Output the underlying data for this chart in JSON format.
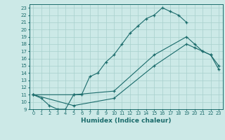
{
  "xlabel": "Humidex (Indice chaleur)",
  "ylabel": "",
  "xlim": [
    -0.5,
    23.5
  ],
  "ylim": [
    9,
    23.5
  ],
  "xticks": [
    0,
    1,
    2,
    3,
    4,
    5,
    6,
    7,
    8,
    9,
    10,
    11,
    12,
    13,
    14,
    15,
    16,
    17,
    18,
    19,
    20,
    21,
    22,
    23
  ],
  "yticks": [
    9,
    10,
    11,
    12,
    13,
    14,
    15,
    16,
    17,
    18,
    19,
    20,
    21,
    22,
    23
  ],
  "background_color": "#cce9e7",
  "grid_color": "#a8d0cd",
  "line_color": "#1a6b6b",
  "curve1_x": [
    0,
    1,
    2,
    3,
    4,
    5,
    6,
    7,
    8,
    9,
    10,
    11,
    12,
    13,
    14,
    15,
    16,
    17,
    18,
    19
  ],
  "curve1_y": [
    11,
    10.5,
    9.5,
    9,
    9,
    11,
    11,
    13.5,
    14,
    15.5,
    16.5,
    18,
    19.5,
    20.5,
    21.5,
    22,
    23,
    22.5,
    22,
    21
  ],
  "curve2_x": [
    0,
    5,
    10,
    15,
    19,
    20,
    21,
    22,
    23
  ],
  "curve2_y": [
    11,
    11,
    11.5,
    16.5,
    19,
    18,
    17,
    16.5,
    15
  ],
  "curve3_x": [
    0,
    5,
    10,
    15,
    19,
    20,
    21,
    22,
    23
  ],
  "curve3_y": [
    11,
    9.5,
    10.5,
    15,
    18,
    17.5,
    17,
    16.5,
    14.5
  ]
}
